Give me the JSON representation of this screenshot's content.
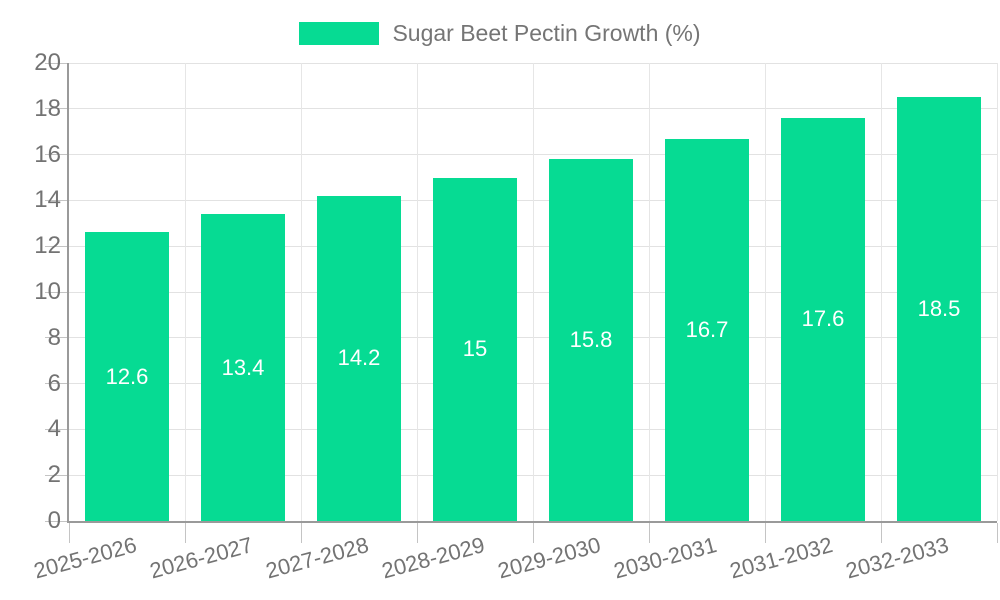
{
  "chart_data": {
    "type": "bar",
    "title": "",
    "legend": {
      "label": "Sugar Beet Pectin Growth (%)",
      "position": "top-center"
    },
    "categories": [
      "2025-2026",
      "2026-2027",
      "2027-2028",
      "2028-2029",
      "2029-2030",
      "2030-2031",
      "2031-2032",
      "2032-2033"
    ],
    "series": [
      {
        "name": "Sugar Beet Pectin Growth (%)",
        "values": [
          12.6,
          13.4,
          14.2,
          15,
          15.8,
          16.7,
          17.6,
          18.5
        ],
        "value_labels": [
          "12.6",
          "13.4",
          "14.2",
          "15",
          "15.8",
          "16.7",
          "17.6",
          "18.5"
        ]
      }
    ],
    "xlabel": "",
    "ylabel": "",
    "ylim": [
      0,
      20
    ],
    "yticks": [
      0,
      2,
      4,
      6,
      8,
      10,
      12,
      14,
      16,
      18,
      20
    ],
    "grid": true,
    "colors": {
      "bar": "#06DB93",
      "value_label": "#ffffff",
      "axis_line": "#9a9a9a",
      "grid_line": "#e2e2e2",
      "tick_text": "#737373",
      "legend_text": "#757575",
      "background": "#ffffff"
    }
  }
}
